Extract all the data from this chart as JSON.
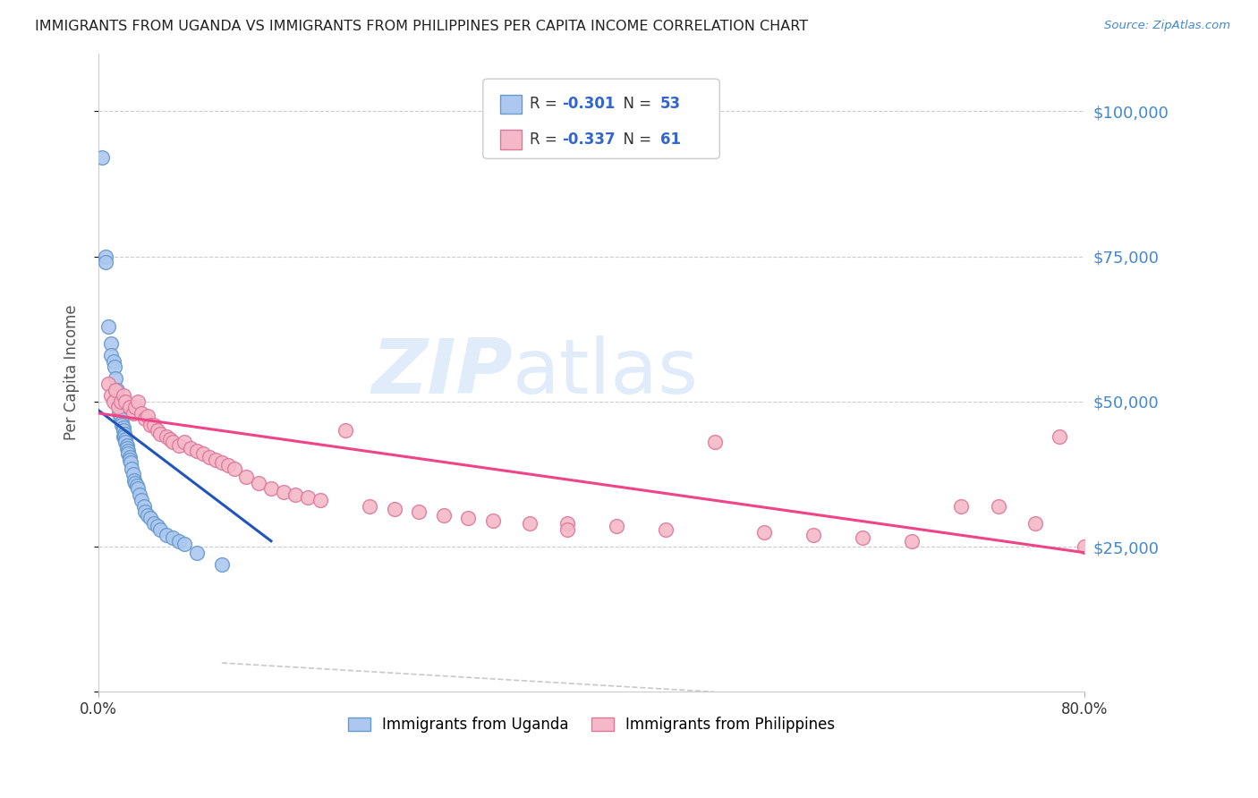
{
  "title": "IMMIGRANTS FROM UGANDA VS IMMIGRANTS FROM PHILIPPINES PER CAPITA INCOME CORRELATION CHART",
  "source": "Source: ZipAtlas.com",
  "ylabel": "Per Capita Income",
  "yticks": [
    0,
    25000,
    50000,
    75000,
    100000
  ],
  "ytick_labels": [
    "",
    "$25,000",
    "$50,000",
    "$75,000",
    "$100,000"
  ],
  "ymin": 0,
  "ymax": 110000,
  "xmin": 0.0,
  "xmax": 0.8,
  "legend_label1": "Immigrants from Uganda",
  "legend_label2": "Immigrants from Philippines",
  "watermark": "ZIPatlas",
  "uganda_color": "#adc8f0",
  "uganda_edge": "#6699cc",
  "philippines_color": "#f5b8c8",
  "philippines_edge": "#dd7799",
  "uganda_R": -0.301,
  "uganda_N": 53,
  "philippines_R": -0.337,
  "philippines_N": 61,
  "uganda_scatter_x": [
    0.003,
    0.006,
    0.006,
    0.008,
    0.01,
    0.01,
    0.012,
    0.013,
    0.014,
    0.015,
    0.015,
    0.016,
    0.017,
    0.017,
    0.018,
    0.018,
    0.019,
    0.019,
    0.02,
    0.02,
    0.02,
    0.021,
    0.021,
    0.022,
    0.022,
    0.023,
    0.023,
    0.024,
    0.024,
    0.025,
    0.025,
    0.026,
    0.027,
    0.028,
    0.029,
    0.03,
    0.031,
    0.032,
    0.033,
    0.035,
    0.037,
    0.038,
    0.04,
    0.042,
    0.045,
    0.048,
    0.05,
    0.055,
    0.06,
    0.065,
    0.07,
    0.08,
    0.1
  ],
  "uganda_scatter_y": [
    92000,
    75000,
    74000,
    63000,
    60000,
    58000,
    57000,
    56000,
    54000,
    52000,
    50000,
    50000,
    49000,
    48000,
    47500,
    47000,
    46500,
    46000,
    45500,
    45000,
    44000,
    44500,
    44000,
    43500,
    43000,
    42500,
    42000,
    41500,
    41000,
    40500,
    40000,
    39500,
    38500,
    37500,
    36500,
    36000,
    35500,
    35000,
    34000,
    33000,
    32000,
    31000,
    30500,
    30000,
    29000,
    28500,
    28000,
    27000,
    26500,
    26000,
    25500,
    24000,
    22000
  ],
  "philippines_scatter_x": [
    0.008,
    0.01,
    0.012,
    0.014,
    0.016,
    0.018,
    0.02,
    0.022,
    0.025,
    0.028,
    0.03,
    0.032,
    0.035,
    0.038,
    0.04,
    0.042,
    0.045,
    0.048,
    0.05,
    0.055,
    0.058,
    0.06,
    0.065,
    0.07,
    0.075,
    0.08,
    0.085,
    0.09,
    0.095,
    0.1,
    0.105,
    0.11,
    0.12,
    0.13,
    0.14,
    0.15,
    0.16,
    0.17,
    0.18,
    0.2,
    0.22,
    0.24,
    0.26,
    0.28,
    0.3,
    0.32,
    0.35,
    0.38,
    0.42,
    0.46,
    0.5,
    0.54,
    0.58,
    0.62,
    0.66,
    0.7,
    0.73,
    0.76,
    0.78,
    0.8,
    0.38
  ],
  "philippines_scatter_y": [
    53000,
    51000,
    50000,
    52000,
    49000,
    50000,
    51000,
    50000,
    49000,
    48000,
    49000,
    50000,
    48000,
    47000,
    47500,
    46000,
    46000,
    45000,
    44500,
    44000,
    43500,
    43000,
    42500,
    43000,
    42000,
    41500,
    41000,
    40500,
    40000,
    39500,
    39000,
    38500,
    37000,
    36000,
    35000,
    34500,
    34000,
    33500,
    33000,
    45000,
    32000,
    31500,
    31000,
    30500,
    30000,
    29500,
    29000,
    29000,
    28500,
    28000,
    43000,
    27500,
    27000,
    26500,
    26000,
    32000,
    32000,
    29000,
    44000,
    25000,
    28000
  ],
  "uganda_line_x0": 0.0,
  "uganda_line_x1": 0.14,
  "uganda_line_y0": 48500,
  "uganda_line_y1": 26000,
  "philippines_line_x0": 0.0,
  "philippines_line_x1": 0.8,
  "philippines_line_y0": 48000,
  "philippines_line_y1": 24000,
  "dash_line_x0": 0.1,
  "dash_line_x1": 0.5,
  "dash_line_y0": 5000,
  "dash_line_y1": 0,
  "background_color": "#ffffff",
  "grid_color": "#cccccc",
  "title_color": "#222222",
  "axis_label_color": "#555555",
  "right_tick_color": "#4488cc",
  "uganda_trend_color": "#2255bb",
  "philippines_trend_color": "#ee4488",
  "title_fontsize": 11.5,
  "source_fontsize": 9.5
}
